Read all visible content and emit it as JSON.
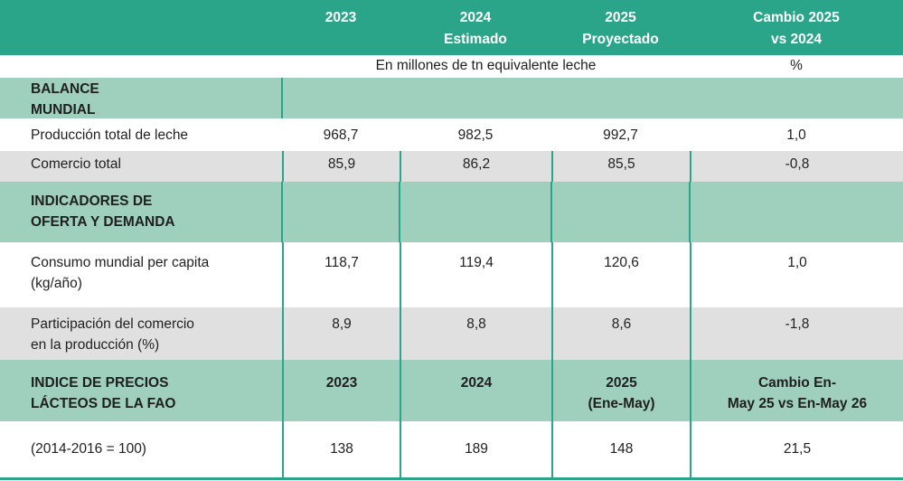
{
  "header": {
    "col1": "2023",
    "col2_line1": "2024",
    "col2_line2": "Estimado",
    "col3_line1": "2025",
    "col3_line2": "Proyectado",
    "col4_line1": "Cambio 2025",
    "col4_line2": "vs 2024"
  },
  "units": {
    "main": "En millones de tn equivalente leche",
    "pct": "%"
  },
  "sections": {
    "balance_line1": "BALANCE",
    "balance_line2": "MUNDIAL",
    "indicadores_line1": "INDICADORES DE",
    "indicadores_line2": "OFERTA Y DEMANDA",
    "indice_line1": "INDICE DE PRECIOS",
    "indice_line2": "LÁCTEOS DE LA FAO"
  },
  "rows": {
    "produccion": {
      "label": "Producción total de leche",
      "v2023": "968,7",
      "v2024": "982,5",
      "v2025": "992,7",
      "change": "1,0"
    },
    "comercio": {
      "label": "Comercio total",
      "v2023": "85,9",
      "v2024": "86,2",
      "v2025": "85,5",
      "change": "-0,8"
    },
    "consumo": {
      "label_line1": "Consumo mundial per capita",
      "label_line2": "(kg/año)",
      "v2023": "118,7",
      "v2024": "119,4",
      "v2025": "120,6",
      "change": "1,0"
    },
    "participacion": {
      "label_line1": "Participación del comercio",
      "label_line2": "en la producción (%)",
      "v2023": "8,9",
      "v2024": "8,8",
      "v2025": "8,6",
      "change": "-1,8"
    },
    "indice_header": {
      "c1": "2023",
      "c2": "2024",
      "c3_line1": "2025",
      "c3_line2": "(Ene-May)",
      "c4_line1": "Cambio En-",
      "c4_line2": "May 25 vs En-May 26"
    },
    "indice": {
      "label": "(2014-2016 = 100)",
      "v2023": "138",
      "v2024": "189",
      "v2025": "148",
      "change": "21,5"
    }
  }
}
